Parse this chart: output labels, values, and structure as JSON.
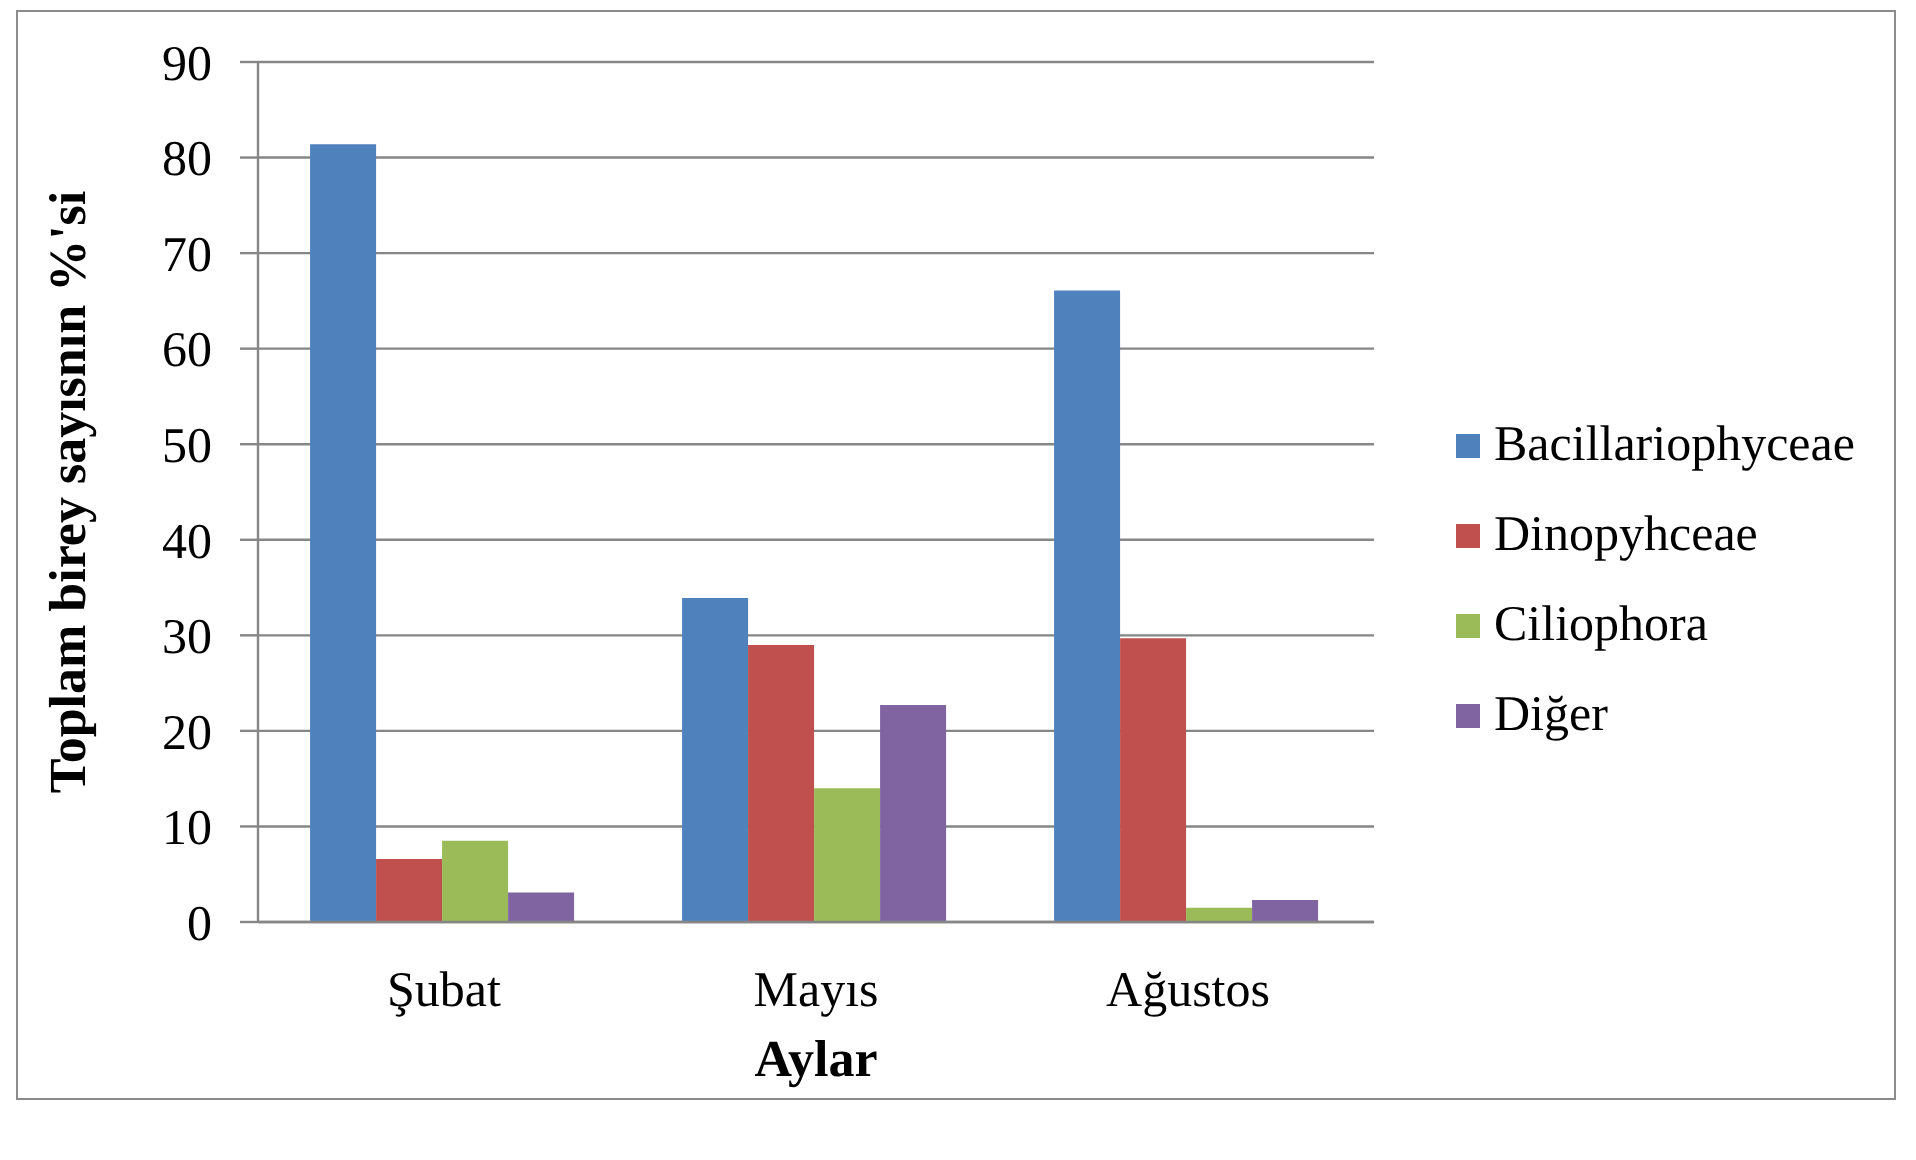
{
  "chart_data": {
    "type": "bar",
    "xlabel": "Aylar",
    "ylabel": "Toplam birey sayısnın %'si",
    "categories": [
      "Şubat",
      "Mayıs",
      "Ağustos"
    ],
    "series": [
      {
        "name": "Bacillariophyceae",
        "color": "#4f81bd",
        "values": [
          81.4,
          33.9,
          66.1
        ]
      },
      {
        "name": "Dinopyhceae",
        "color": "#c0504d",
        "values": [
          6.6,
          29.0,
          29.7
        ]
      },
      {
        "name": "Ciliophora",
        "color": "#9bbb59",
        "values": [
          8.5,
          14.0,
          1.5
        ]
      },
      {
        "name": "Diğer",
        "color": "#8064a2",
        "values": [
          3.1,
          22.7,
          2.3
        ]
      }
    ],
    "ylim": [
      0,
      90
    ],
    "yticks": [
      0,
      10,
      20,
      30,
      40,
      50,
      60,
      70,
      80,
      90
    ],
    "grid": "y",
    "legend": "right"
  }
}
